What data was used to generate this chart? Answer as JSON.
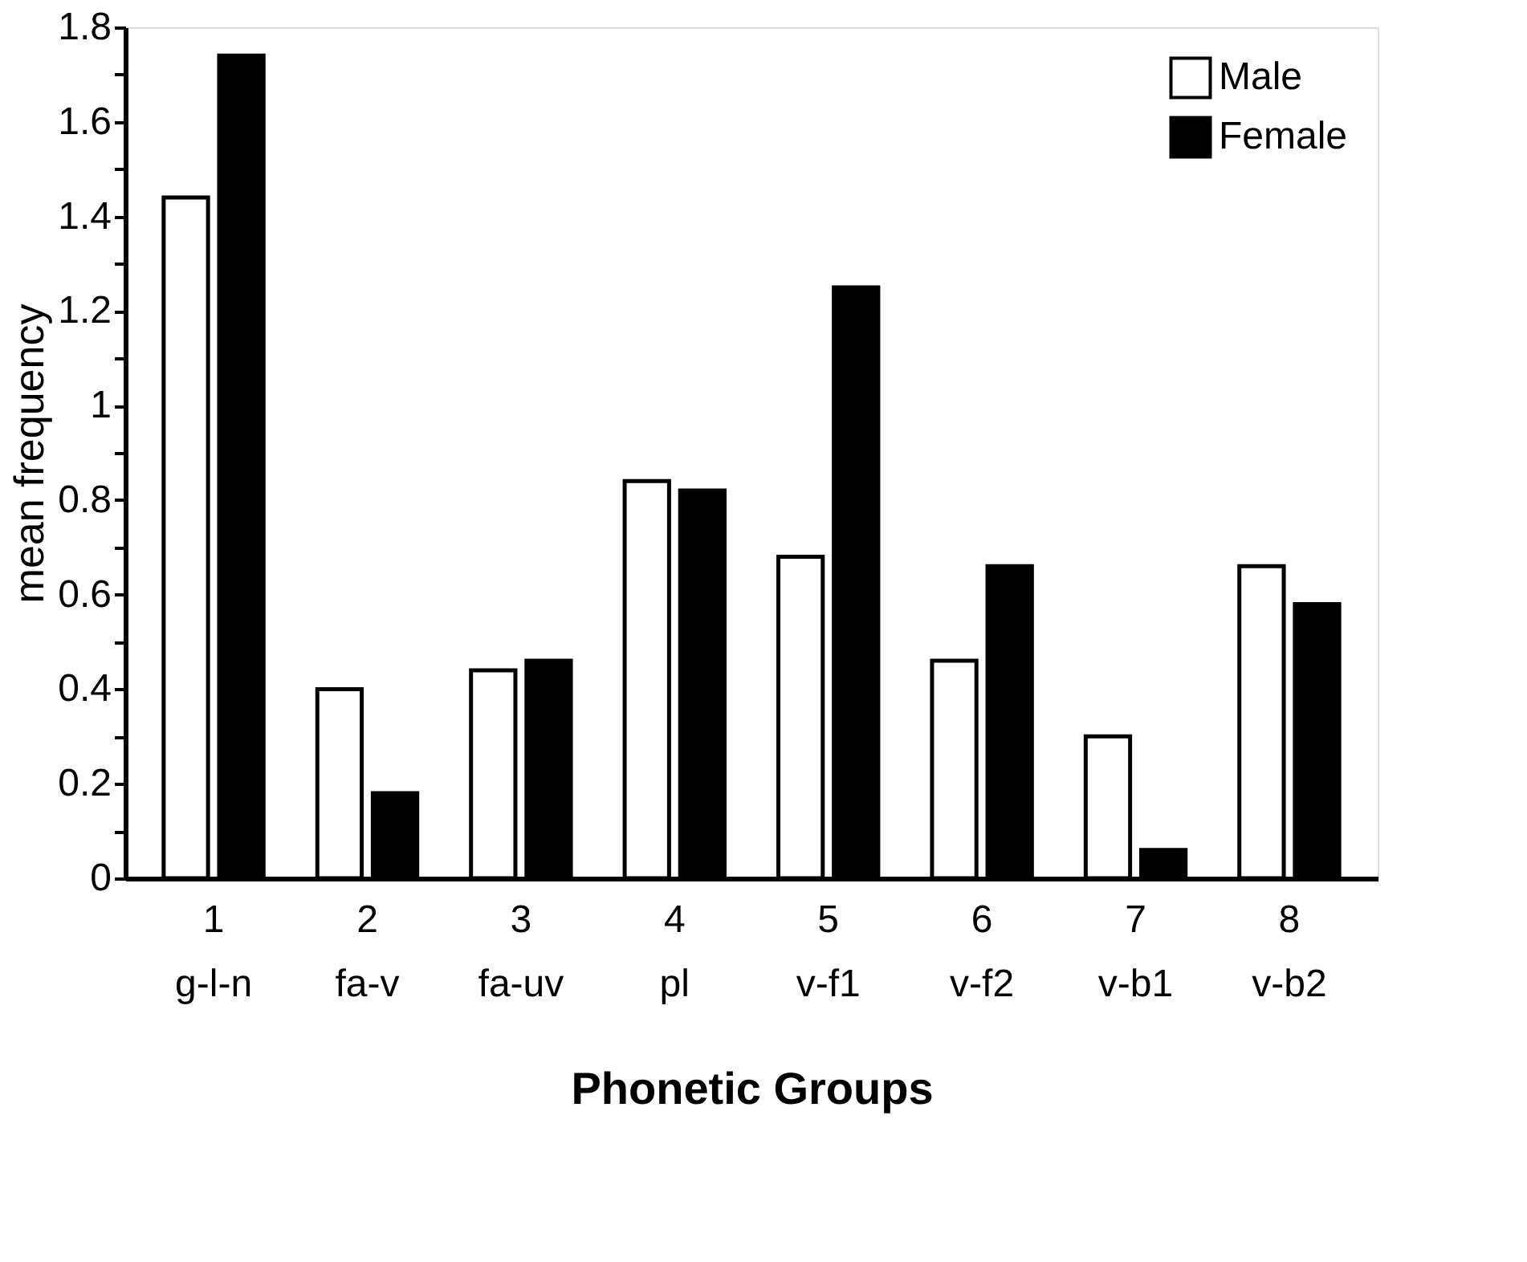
{
  "chart_data": {
    "type": "bar",
    "xlabel": "Phonetic Groups",
    "ylabel": "mean frequency",
    "categories": [
      "1\ng-l-n",
      "2\nfa-v",
      "3\nfa-uv",
      "4\npl",
      "5\nv-f1",
      "6\nv-f2",
      "7\nv-b1",
      "8\nv-b2"
    ],
    "series": [
      {
        "name": "Male",
        "color": "#ffffff",
        "values": [
          1.44,
          0.4,
          0.44,
          0.84,
          0.68,
          0.46,
          0.3,
          0.66
        ]
      },
      {
        "name": "Female",
        "color": "#000000",
        "values": [
          1.74,
          0.18,
          0.46,
          0.82,
          1.25,
          0.66,
          0.06,
          0.58
        ]
      }
    ],
    "ylim": [
      0,
      1.8
    ],
    "yticks": [
      0,
      {
        "value": 0.1,
        "label": null
      },
      0.2,
      {
        "value": 0.3,
        "label": null
      },
      0.4,
      {
        "value": 0.5,
        "label": null
      },
      0.6,
      {
        "value": 0.7,
        "label": null
      },
      0.8,
      {
        "value": 0.9,
        "label": null
      },
      1,
      {
        "value": 1.1,
        "label": null
      },
      1.2,
      {
        "value": 1.3,
        "label": null
      },
      1.4,
      {
        "value": 1.5,
        "label": null
      },
      1.6,
      {
        "value": 1.7,
        "label": null
      },
      1.8
    ],
    "grid": false,
    "legend": "top right"
  }
}
